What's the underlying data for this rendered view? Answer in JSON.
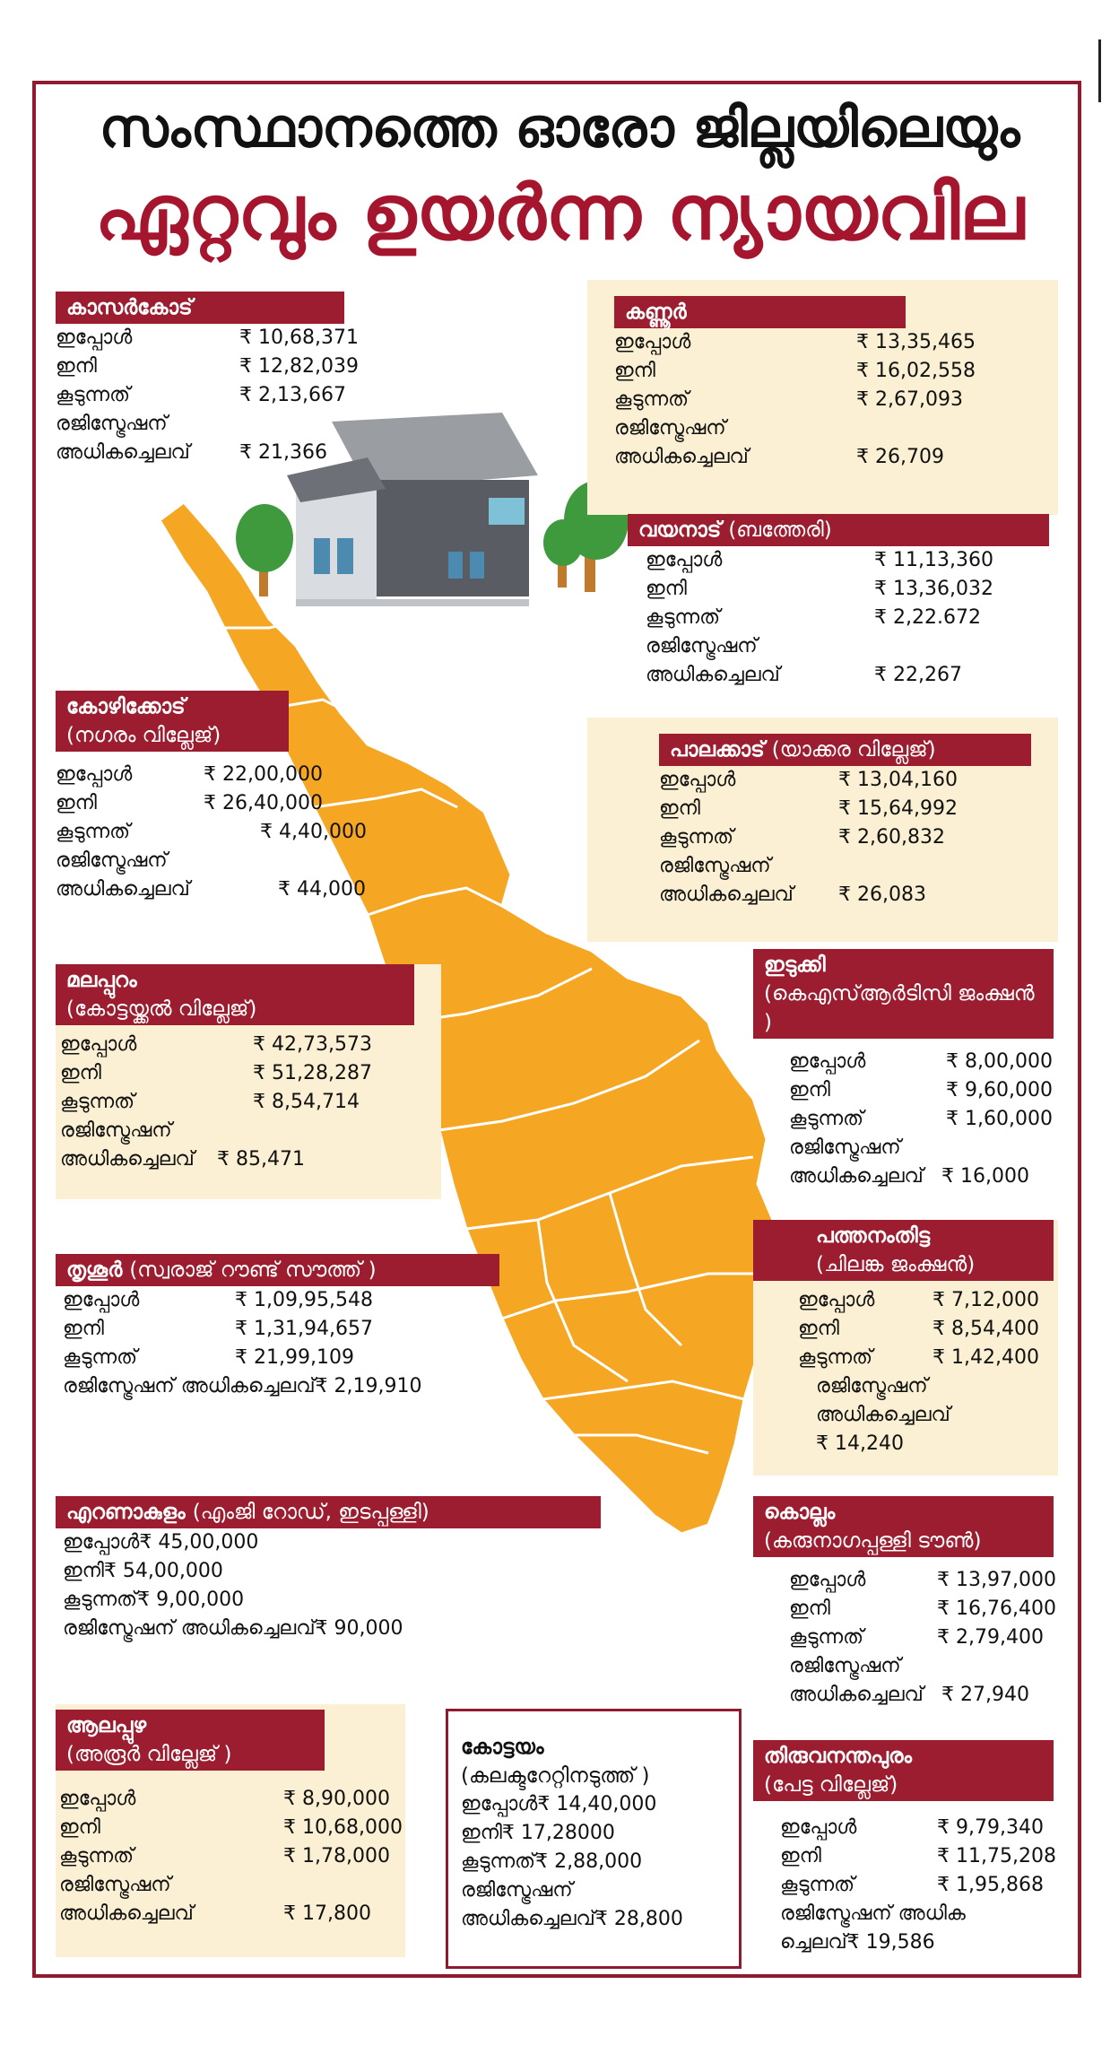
{
  "title": {
    "line1": "സംസ്ഥാനത്തെ ഓരോ ജില്ലയിലെയും",
    "line2": "ഏറ്റവും ഉയർന്ന ന്യായവില"
  },
  "colors": {
    "accent": "#9b1d2f",
    "map": "#f5a623",
    "cream": "#fbf0d3"
  },
  "labels": {
    "now": "ഇപ്പോൾ",
    "next": "ഇനി",
    "increase": "കൂടുന്നത്",
    "registration": "രജിസ്ട്രേഷന്",
    "extra": "അധികച്ചെലവ്"
  },
  "districts": {
    "kasaragod": {
      "name": "കാസർകോട്",
      "now": "₹ 10,68,371",
      "next": "₹ 12,82,039",
      "increase": "₹ 2,13,667",
      "extra": "₹ 21,366"
    },
    "kannur": {
      "name": "കണ്ണൂർ",
      "now": "₹ 13,35,465",
      "next": "₹ 16,02,558",
      "increase": "₹ 2,67,093",
      "extra": "₹ 26,709"
    },
    "wayanad": {
      "name": "വയനാട്",
      "place": "(ബത്തേരി)",
      "now": "₹ 11,13,360",
      "next": "₹ 13,36,032",
      "increase": "₹ 2,22.672",
      "extra": "₹ 22,267"
    },
    "kozhikode": {
      "name": "കോഴിക്കോട്",
      "place": "(നഗരം വില്ലേജ്)",
      "now": "₹ 22,00,000",
      "next": "₹ 26,40,000",
      "increase": "₹ 4,40,000",
      "extra": "₹ 44,000"
    },
    "palakkad": {
      "name": "പാലക്കാട്",
      "place": "(യാക്കര വില്ലേജ്)",
      "now": "₹ 13,04,160",
      "next": "₹ 15,64,992",
      "increase": "₹ 2,60,832",
      "extra": "₹ 26,083"
    },
    "malappuram": {
      "name": "മലപ്പുറം",
      "place": "(കോട്ടയ്ക്കൽ വില്ലേജ്)",
      "now": "₹  42,73,573",
      "next": "₹  51,28,287",
      "increase": "₹ 8,54,714",
      "extra": "₹ 85,471"
    },
    "idukki": {
      "name": "ഇടുക്കി",
      "place": "(കെഎസ്ആർടിസി ജംക്ഷൻ )",
      "now": "₹ 8,00,000",
      "next": "₹ 9,60,000",
      "increase": "₹ 1,60,000",
      "extra": "₹ 16,000"
    },
    "thrissur": {
      "name": "തൃശൂർ",
      "place": "(സ്വരാജ് റൗണ്ട് സൗത്ത് )",
      "now": "₹ 1,09,95,548",
      "next": "₹ 1,31,94,657",
      "increase": "₹ 21,99,109",
      "extra": "₹ 2,19,910"
    },
    "pathanamthitta": {
      "name": "പത്തനംതിട്ട",
      "place": "(ചിലങ്ക ജംക്ഷൻ)",
      "now": "₹ 7,12,000",
      "next": "₹ 8,54,400",
      "increase": "₹ 1,42,400",
      "extra": "₹ 14,240"
    },
    "ernakulam": {
      "name": "എറണാകുളം",
      "place": "(എംജി റോഡ്, ഇടപ്പള്ളി)",
      "now": "₹ 45,00,000",
      "next": "₹ 54,00,000",
      "increase": "₹ 9,00,000",
      "extra": "₹ 90,000"
    },
    "kollam": {
      "name": "കൊല്ലം",
      "place": "(കരുനാഗപ്പള്ളി ടൗൺ)",
      "now": "₹ 13,97,000",
      "next": "₹ 16,76,400",
      "increase": "₹ 2,79,400",
      "extra": "₹ 27,940"
    },
    "alappuzha": {
      "name": "ആലപ്പുഴ",
      "place": "(അരൂർ വില്ലേജ് )",
      "now": "₹ 8,90,000",
      "next": "₹ 10,68,000",
      "increase": "₹ 1,78,000",
      "extra": "₹ 17,800"
    },
    "kottayam": {
      "name": "കോട്ടയം",
      "place": "(കലക്ടറേറ്റിനടുത്ത് )",
      "now": "₹ 14,40,000",
      "next": "₹ 17,28000",
      "increase": "₹ 2,88,000",
      "extra": "₹ 28,800"
    },
    "thiruvananthapuram": {
      "name": "തിരുവനന്തപുരം",
      "place": "(പേട്ട വില്ലേജ്)",
      "now": "₹ 9,79,340",
      "next": "₹ 11,75,208",
      "increase": "₹ 1,95,868",
      "extra_label_a": "രജിസ്ട്രേഷന് അധിക",
      "extra_label_b": "ച്ചെലവ്",
      "extra": "₹ 19,586"
    }
  }
}
